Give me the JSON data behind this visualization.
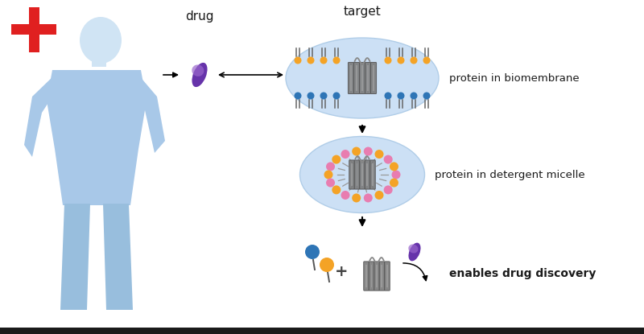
{
  "bg_color": "#ffffff",
  "blue_light": "#c8dcf0",
  "blue_body": "#a8c8e8",
  "blue_body2": "#d0e4f4",
  "blue_dark": "#2e75b6",
  "orange": "#f4a326",
  "purple_dark": "#6633aa",
  "purple_light": "#9966cc",
  "red": "#e02020",
  "gray_protein": "#888888",
  "gray_protein2": "#aaaaaa",
  "pink_micelle": "#e87db0",
  "text_color": "#1a1a1a",
  "label_drug": "drug",
  "label_target": "target",
  "label_biomembrane": "protein in biomembrane",
  "label_micelle": "protein in detergent micelle",
  "label_discovery": "enables drug discovery",
  "bottom_bar": "#1a1a1a",
  "fig_width": 8.0,
  "fig_height": 4.15
}
